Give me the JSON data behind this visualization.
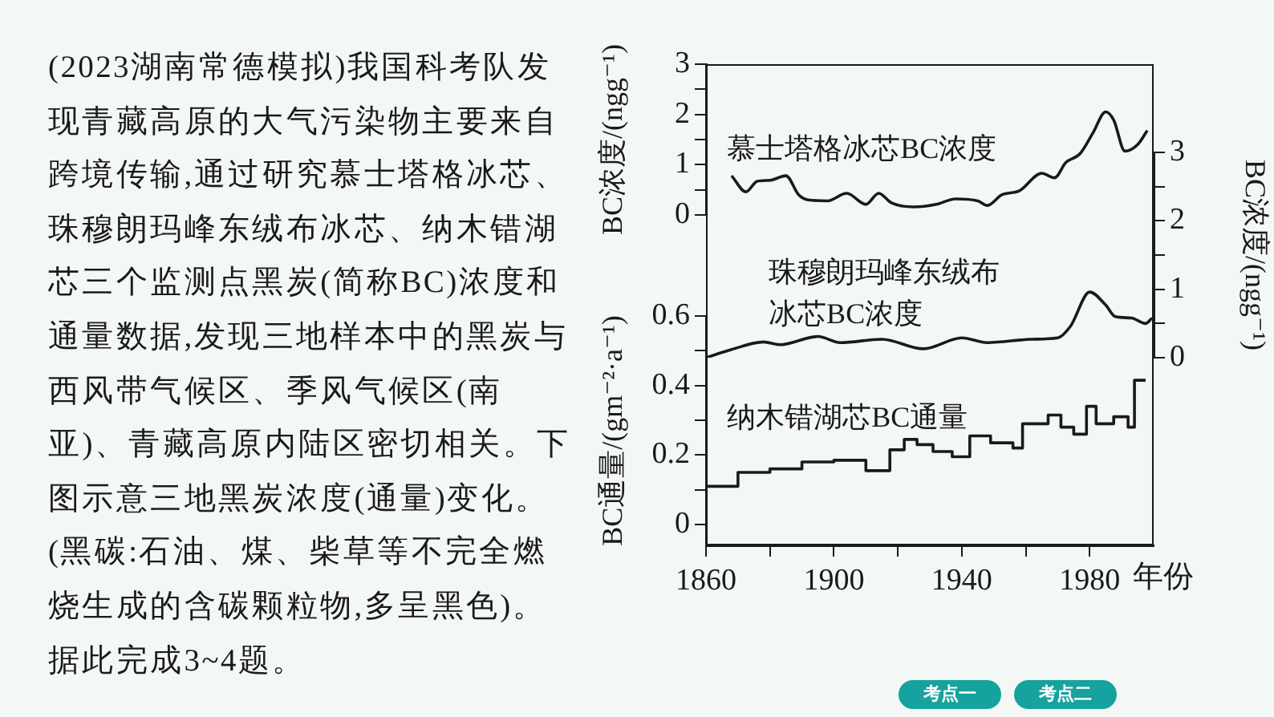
{
  "chart_data": [
    {
      "type": "other",
      "annotations": [
        "(2023湖南常德模拟)我国科考队发现青藏高原的大气污染物主要来自跨境传输,通过研究慕士塔格冰芯、珠穆朗玛峰东绒布冰芯、纳木错湖芯三个监测点黑炭(简称BC)浓度和通量数据,发现三地样本中的黑炭与西风带气候区、季风气候区(南亚)、青藏高原内陆区密切相关。下图示意三地黑炭浓度(通量)变化。(黑碳:石油、煤、柴草等不完全燃烧生成的含碳颗粒物,多呈黑色)。据此完成3~4题。",
        "考点一",
        "考点二"
      ]
    },
    {
      "type": "line",
      "ylabel": "BC浓度/(ngg⁻¹)",
      "xlim": [
        1860,
        2000
      ],
      "ylim": [
        0,
        3
      ],
      "yticks": [
        0,
        {
          "value": 0.5,
          "label": null
        },
        1,
        {
          "value": 1.5,
          "label": null
        },
        2,
        {
          "value": 2.5,
          "label": null
        },
        3
      ],
      "tick_labels": "y",
      "series": [
        {
          "name": "慕士塔格冰芯BC浓度",
          "color": "#1a1a1a",
          "x": [
            1868,
            1872.5,
            1876,
            1880,
            1885,
            1889,
            1892,
            1898,
            1904,
            1910,
            1914,
            1918,
            1925,
            1932,
            1938,
            1945,
            1948,
            1952.5,
            1958,
            1965,
            1969,
            1972.5,
            1977,
            1981,
            1985,
            1987.5,
            1991,
            1995,
            1998
          ],
          "values": [
            0.78,
            0.46,
            0.67,
            0.69,
            0.78,
            0.4,
            0.3,
            0.28,
            0.43,
            0.21,
            0.43,
            0.24,
            0.16,
            0.21,
            0.32,
            0.28,
            0.19,
            0.4,
            0.48,
            0.83,
            0.74,
            1.04,
            1.22,
            1.63,
            2.05,
            1.89,
            1.27,
            1.4,
            1.68
          ]
        }
      ]
    },
    {
      "type": "line",
      "y2label": "BC浓度/(ngg⁻¹)",
      "xlim": [
        1860,
        2000
      ],
      "y2lim": [
        0,
        3
      ],
      "y2ticks": [
        0,
        {
          "value": 0.5,
          "label": null
        },
        1,
        {
          "value": 1.5,
          "label": null
        },
        2,
        {
          "value": 2.5,
          "label": null
        },
        3
      ],
      "tick_labels": "y",
      "series": [
        {
          "name": "珠穆朗玛峰东绒布冰芯BC浓度",
          "axis": "y2",
          "color": "#1a1a1a",
          "x": [
            1860,
            1868,
            1878,
            1883,
            1895,
            1902,
            1915,
            1928,
            1940,
            1948,
            1962,
            1970,
            1974,
            1980,
            1985,
            1988,
            1993,
            1997.5,
            1999.5
          ],
          "values": [
            0.0,
            0.12,
            0.23,
            0.19,
            0.31,
            0.22,
            0.27,
            0.13,
            0.29,
            0.22,
            0.27,
            0.29,
            0.46,
            0.96,
            0.77,
            0.6,
            0.58,
            0.5,
            0.58
          ]
        }
      ]
    },
    {
      "type": "step",
      "xlabel": "年份",
      "ylabel": "BC通量/(gm⁻²·a⁻¹)",
      "xlim": [
        1860,
        2000
      ],
      "xticks": [
        1860,
        {
          "value": 1880,
          "label": null
        },
        1900,
        {
          "value": 1920,
          "label": null
        },
        1940,
        {
          "value": 1960,
          "label": null
        },
        1980
      ],
      "ylim": [
        -0.06,
        0.6
      ],
      "yticks": [
        0,
        {
          "value": 0.1,
          "label": null
        },
        0.2,
        {
          "value": 0.3,
          "label": null
        },
        0.4,
        {
          "value": 0.5,
          "label": null
        },
        0.6
      ],
      "series": [
        {
          "name": "纳木错湖芯BC通量",
          "color": "#1a1a1a",
          "x": [
            1860,
            1870,
            1880,
            1890,
            1900,
            1910,
            1917.5,
            1922,
            1926,
            1931,
            1937,
            1942.5,
            1949,
            1956,
            1959,
            1967,
            1971,
            1975,
            1979,
            1982,
            1987.5,
            1992,
            1994,
            1997.5
          ],
          "values": [
            0.135,
            0.11,
            0.15,
            0.16,
            0.18,
            0.185,
            0.155,
            0.215,
            0.245,
            0.23,
            0.21,
            0.195,
            0.255,
            0.235,
            0.22,
            0.29,
            0.315,
            0.28,
            0.26,
            0.34,
            0.29,
            0.31,
            0.28,
            0.415
          ]
        }
      ]
    }
  ]
}
